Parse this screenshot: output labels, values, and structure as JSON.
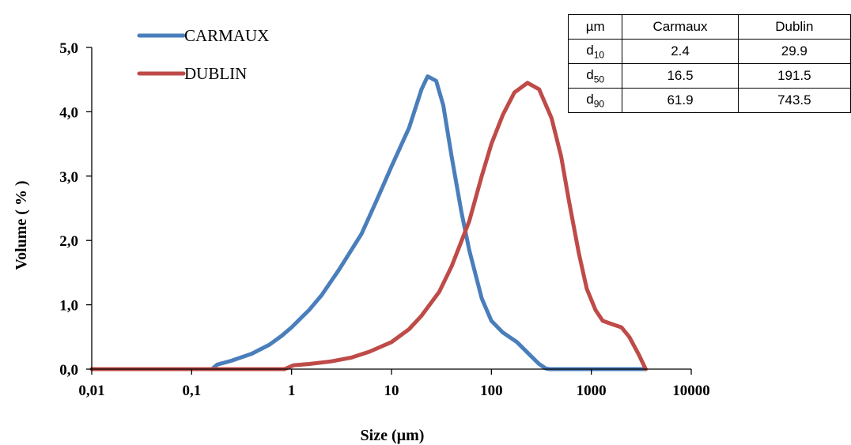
{
  "chart_data": {
    "type": "line",
    "xlabel": "Size (µm)",
    "ylabel": "Volume ( % )",
    "x_scale": "log",
    "xlim": [
      0.01,
      10000
    ],
    "ylim": [
      0,
      5.0
    ],
    "x_ticks": [
      "0,01",
      "0,1",
      "1",
      "10",
      "100",
      "1000",
      "10000"
    ],
    "y_ticks": [
      "0,0",
      "1,0",
      "2,0",
      "3,0",
      "4,0",
      "5,0"
    ],
    "grid": false,
    "legend_position": "top-left",
    "series": [
      {
        "name": "CARMAUX",
        "color": "#4a7ebb",
        "points": [
          [
            0.01,
            0
          ],
          [
            0.16,
            0
          ],
          [
            0.18,
            0.07
          ],
          [
            0.25,
            0.13
          ],
          [
            0.4,
            0.24
          ],
          [
            0.6,
            0.38
          ],
          [
            0.8,
            0.52
          ],
          [
            1.0,
            0.65
          ],
          [
            1.5,
            0.92
          ],
          [
            2.0,
            1.15
          ],
          [
            3.0,
            1.55
          ],
          [
            5.0,
            2.1
          ],
          [
            7.0,
            2.6
          ],
          [
            10.0,
            3.15
          ],
          [
            15.0,
            3.75
          ],
          [
            20.0,
            4.35
          ],
          [
            23.0,
            4.55
          ],
          [
            28.0,
            4.48
          ],
          [
            33.0,
            4.1
          ],
          [
            40.0,
            3.3
          ],
          [
            50.0,
            2.45
          ],
          [
            60.0,
            1.85
          ],
          [
            80.0,
            1.1
          ],
          [
            100.0,
            0.75
          ],
          [
            130.0,
            0.57
          ],
          [
            180.0,
            0.42
          ],
          [
            250.0,
            0.2
          ],
          [
            300.0,
            0.08
          ],
          [
            350.0,
            0.01
          ],
          [
            380.0,
            0
          ],
          [
            3500.0,
            0
          ]
        ]
      },
      {
        "name": "DUBLIN",
        "color": "#be4b48",
        "points": [
          [
            0.01,
            0
          ],
          [
            0.85,
            0
          ],
          [
            1.05,
            0.06
          ],
          [
            1.5,
            0.08
          ],
          [
            2.5,
            0.12
          ],
          [
            4.0,
            0.18
          ],
          [
            6.0,
            0.27
          ],
          [
            10.0,
            0.42
          ],
          [
            15.0,
            0.62
          ],
          [
            20.0,
            0.83
          ],
          [
            30.0,
            1.2
          ],
          [
            40.0,
            1.6
          ],
          [
            60.0,
            2.3
          ],
          [
            80.0,
            3.0
          ],
          [
            100.0,
            3.5
          ],
          [
            130.0,
            3.95
          ],
          [
            170.0,
            4.3
          ],
          [
            230.0,
            4.45
          ],
          [
            300.0,
            4.35
          ],
          [
            400.0,
            3.9
          ],
          [
            500.0,
            3.3
          ],
          [
            600.0,
            2.6
          ],
          [
            750.0,
            1.8
          ],
          [
            900.0,
            1.25
          ],
          [
            1100.0,
            0.92
          ],
          [
            1300.0,
            0.75
          ],
          [
            1600.0,
            0.7
          ],
          [
            2000.0,
            0.65
          ],
          [
            2400.0,
            0.5
          ],
          [
            3000.0,
            0.22
          ],
          [
            3500.0,
            0
          ]
        ]
      }
    ]
  },
  "table": {
    "header": [
      "µm",
      "Carmaux",
      "Dublin"
    ],
    "rows": [
      {
        "label": "d",
        "sub": "10",
        "carmaux": "2.4",
        "dublin": "29.9"
      },
      {
        "label": "d",
        "sub": "50",
        "carmaux": "16.5",
        "dublin": "191.5"
      },
      {
        "label": "d",
        "sub": "90",
        "carmaux": "61.9",
        "dublin": "743.5"
      }
    ]
  }
}
